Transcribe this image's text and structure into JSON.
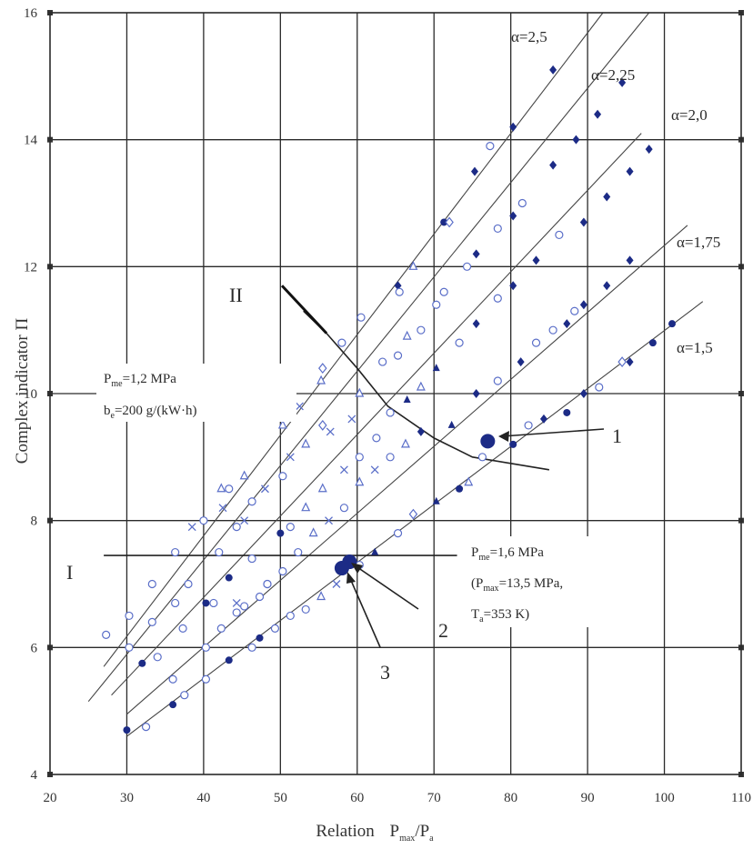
{
  "chart_data": {
    "type": "scatter",
    "title": "",
    "xlabel": "Relation",
    "xlabel_formula": {
      "p1": "P",
      "s1": "max",
      "mid": "/P",
      "s2": "a"
    },
    "ylabel": "Complex indicator П",
    "xlim": [
      20,
      110
    ],
    "ylim": [
      4,
      16
    ],
    "x_ticks": [
      "20",
      "30",
      "40",
      "50",
      "60",
      "70",
      "80",
      "90",
      "100",
      "110"
    ],
    "y_ticks": [
      "4",
      "6",
      "8",
      "10",
      "12",
      "14",
      "16"
    ],
    "grid": true,
    "series": [
      {
        "name": "α=2,5",
        "fit": [
          [
            27,
            5.7
          ],
          [
            92,
            16.0
          ]
        ],
        "points": [
          {
            "x": 27.3,
            "y": 6.2,
            "m": "circle-open"
          },
          {
            "x": 30.3,
            "y": 6.5,
            "m": "circle-open"
          },
          {
            "x": 33.3,
            "y": 7.0,
            "m": "circle-open"
          },
          {
            "x": 36.3,
            "y": 7.5,
            "m": "circle-open"
          },
          {
            "x": 38.5,
            "y": 7.9,
            "m": "x"
          },
          {
            "x": 40.0,
            "y": 8.0,
            "m": "circle-open"
          },
          {
            "x": 42.3,
            "y": 8.5,
            "m": "triangle-open"
          },
          {
            "x": 43.3,
            "y": 8.5,
            "m": "circle-open"
          },
          {
            "x": 45.3,
            "y": 8.7,
            "m": "triangle-open"
          },
          {
            "x": 50.3,
            "y": 9.5,
            "m": "triangle-open"
          },
          {
            "x": 51.3,
            "y": 9.7,
            "m": "circle-open"
          },
          {
            "x": 52.5,
            "y": 9.8,
            "m": "x"
          },
          {
            "x": 55.3,
            "y": 10.2,
            "m": "triangle-open"
          },
          {
            "x": 55.5,
            "y": 10.4,
            "m": "diamond-open"
          },
          {
            "x": 58.0,
            "y": 10.8,
            "m": "circle-open"
          },
          {
            "x": 60.5,
            "y": 11.2,
            "m": "circle-open"
          },
          {
            "x": 65.3,
            "y": 11.7,
            "m": "diamond-filled"
          },
          {
            "x": 65.5,
            "y": 11.6,
            "m": "circle-open"
          },
          {
            "x": 67.3,
            "y": 12.0,
            "m": "triangle-open"
          },
          {
            "x": 71.3,
            "y": 12.7,
            "m": "circle-filled"
          },
          {
            "x": 72.0,
            "y": 12.7,
            "m": "diamond-open"
          },
          {
            "x": 75.3,
            "y": 13.5,
            "m": "diamond-filled"
          },
          {
            "x": 77.3,
            "y": 13.9,
            "m": "circle-open"
          },
          {
            "x": 80.3,
            "y": 14.2,
            "m": "diamond-filled"
          },
          {
            "x": 85.5,
            "y": 15.1,
            "m": "diamond-filled"
          }
        ]
      },
      {
        "name": "α=2,25",
        "fit": [
          [
            25,
            5.15
          ],
          [
            98,
            16.0
          ]
        ],
        "points": [
          {
            "x": 30.3,
            "y": 6.0,
            "m": "circle-open"
          },
          {
            "x": 33.3,
            "y": 6.4,
            "m": "circle-open"
          },
          {
            "x": 36.3,
            "y": 6.7,
            "m": "circle-open"
          },
          {
            "x": 38.0,
            "y": 7.0,
            "m": "circle-open"
          },
          {
            "x": 42.0,
            "y": 7.5,
            "m": "circle-open"
          },
          {
            "x": 42.5,
            "y": 8.2,
            "m": "x"
          },
          {
            "x": 44.3,
            "y": 7.9,
            "m": "circle-open"
          },
          {
            "x": 45.3,
            "y": 8.0,
            "m": "x"
          },
          {
            "x": 46.3,
            "y": 8.3,
            "m": "circle-open"
          },
          {
            "x": 48.0,
            "y": 8.5,
            "m": "x"
          },
          {
            "x": 50.3,
            "y": 8.7,
            "m": "circle-open"
          },
          {
            "x": 51.3,
            "y": 9.0,
            "m": "x"
          },
          {
            "x": 53.3,
            "y": 9.2,
            "m": "triangle-open"
          },
          {
            "x": 55.5,
            "y": 9.5,
            "m": "diamond-open"
          },
          {
            "x": 56.5,
            "y": 9.4,
            "m": "x"
          },
          {
            "x": 59.3,
            "y": 9.6,
            "m": "x"
          },
          {
            "x": 60.3,
            "y": 10.0,
            "m": "triangle-open"
          },
          {
            "x": 63.3,
            "y": 10.5,
            "m": "circle-open"
          },
          {
            "x": 65.3,
            "y": 10.6,
            "m": "circle-open"
          },
          {
            "x": 66.5,
            "y": 10.9,
            "m": "triangle-open"
          },
          {
            "x": 68.3,
            "y": 11.0,
            "m": "circle-open"
          },
          {
            "x": 70.3,
            "y": 11.4,
            "m": "circle-open"
          },
          {
            "x": 71.3,
            "y": 11.6,
            "m": "circle-open"
          },
          {
            "x": 74.3,
            "y": 12.0,
            "m": "circle-open"
          },
          {
            "x": 75.5,
            "y": 12.2,
            "m": "diamond-filled"
          },
          {
            "x": 78.3,
            "y": 12.6,
            "m": "circle-open"
          },
          {
            "x": 80.3,
            "y": 12.8,
            "m": "diamond-filled"
          },
          {
            "x": 81.5,
            "y": 13.0,
            "m": "circle-open"
          },
          {
            "x": 85.5,
            "y": 13.6,
            "m": "diamond-filled"
          },
          {
            "x": 88.5,
            "y": 14.0,
            "m": "diamond-filled"
          },
          {
            "x": 91.3,
            "y": 14.4,
            "m": "diamond-filled"
          },
          {
            "x": 94.5,
            "y": 14.9,
            "m": "diamond-filled"
          }
        ]
      },
      {
        "name": "α=2,0",
        "fit": [
          [
            28,
            5.25
          ],
          [
            97,
            14.1
          ]
        ],
        "points": [
          {
            "x": 32.0,
            "y": 5.75,
            "m": "circle-filled"
          },
          {
            "x": 34.0,
            "y": 5.85,
            "m": "circle-open"
          },
          {
            "x": 37.3,
            "y": 6.3,
            "m": "circle-open"
          },
          {
            "x": 40.3,
            "y": 6.7,
            "m": "circle-filled"
          },
          {
            "x": 41.3,
            "y": 6.7,
            "m": "circle-open"
          },
          {
            "x": 43.3,
            "y": 7.1,
            "m": "circle-filled"
          },
          {
            "x": 44.3,
            "y": 6.7,
            "m": "x"
          },
          {
            "x": 45.3,
            "y": 6.65,
            "m": "circle-open"
          },
          {
            "x": 46.3,
            "y": 7.4,
            "m": "circle-open"
          },
          {
            "x": 48.3,
            "y": 7.0,
            "m": "circle-open"
          },
          {
            "x": 50.0,
            "y": 7.8,
            "m": "circle-filled"
          },
          {
            "x": 51.3,
            "y": 7.9,
            "m": "circle-open"
          },
          {
            "x": 53.3,
            "y": 8.2,
            "m": "triangle-open"
          },
          {
            "x": 55.5,
            "y": 8.5,
            "m": "triangle-open"
          },
          {
            "x": 58.3,
            "y": 8.8,
            "m": "x"
          },
          {
            "x": 60.3,
            "y": 9.0,
            "m": "circle-open"
          },
          {
            "x": 62.5,
            "y": 9.3,
            "m": "circle-open"
          },
          {
            "x": 64.3,
            "y": 9.7,
            "m": "circle-open"
          },
          {
            "x": 66.5,
            "y": 9.9,
            "m": "triangle-filled"
          },
          {
            "x": 68.3,
            "y": 10.1,
            "m": "triangle-open"
          },
          {
            "x": 70.3,
            "y": 10.4,
            "m": "triangle-filled"
          },
          {
            "x": 73.3,
            "y": 10.8,
            "m": "circle-open"
          },
          {
            "x": 75.5,
            "y": 11.1,
            "m": "diamond-filled"
          },
          {
            "x": 78.3,
            "y": 11.5,
            "m": "circle-open"
          },
          {
            "x": 80.3,
            "y": 11.7,
            "m": "diamond-filled"
          },
          {
            "x": 83.3,
            "y": 12.1,
            "m": "diamond-filled"
          },
          {
            "x": 86.3,
            "y": 12.5,
            "m": "circle-open"
          },
          {
            "x": 89.5,
            "y": 12.7,
            "m": "diamond-filled"
          },
          {
            "x": 92.5,
            "y": 13.1,
            "m": "diamond-filled"
          },
          {
            "x": 95.5,
            "y": 13.5,
            "m": "diamond-filled"
          },
          {
            "x": 98.0,
            "y": 13.85,
            "m": "diamond-filled"
          }
        ]
      },
      {
        "name": "α=1,75",
        "fit": [
          [
            30,
            4.95
          ],
          [
            103,
            12.65
          ]
        ],
        "points": [
          {
            "x": 36.0,
            "y": 5.5,
            "m": "circle-open"
          },
          {
            "x": 40.3,
            "y": 6.0,
            "m": "circle-open"
          },
          {
            "x": 42.3,
            "y": 6.3,
            "m": "circle-open"
          },
          {
            "x": 44.3,
            "y": 6.55,
            "m": "circle-open"
          },
          {
            "x": 47.3,
            "y": 6.8,
            "m": "circle-open"
          },
          {
            "x": 48.3,
            "y": 7.0,
            "m": "circle-open"
          },
          {
            "x": 50.3,
            "y": 7.2,
            "m": "circle-open"
          },
          {
            "x": 52.3,
            "y": 7.5,
            "m": "circle-open"
          },
          {
            "x": 54.3,
            "y": 7.8,
            "m": "triangle-open"
          },
          {
            "x": 56.3,
            "y": 8.0,
            "m": "x"
          },
          {
            "x": 58.3,
            "y": 8.2,
            "m": "circle-open"
          },
          {
            "x": 60.3,
            "y": 8.6,
            "m": "triangle-open"
          },
          {
            "x": 62.3,
            "y": 8.8,
            "m": "x"
          },
          {
            "x": 64.3,
            "y": 9.0,
            "m": "circle-open"
          },
          {
            "x": 66.3,
            "y": 9.2,
            "m": "triangle-open"
          },
          {
            "x": 68.3,
            "y": 9.4,
            "m": "diamond-filled"
          },
          {
            "x": 72.3,
            "y": 9.5,
            "m": "triangle-filled"
          },
          {
            "x": 75.5,
            "y": 10.0,
            "m": "diamond-filled"
          },
          {
            "x": 78.3,
            "y": 10.2,
            "m": "circle-open"
          },
          {
            "x": 81.3,
            "y": 10.5,
            "m": "diamond-filled"
          },
          {
            "x": 83.3,
            "y": 10.8,
            "m": "circle-open"
          },
          {
            "x": 85.5,
            "y": 11.0,
            "m": "circle-open"
          },
          {
            "x": 87.3,
            "y": 11.1,
            "m": "diamond-filled"
          },
          {
            "x": 88.3,
            "y": 11.3,
            "m": "circle-open"
          },
          {
            "x": 89.5,
            "y": 11.4,
            "m": "diamond-filled"
          },
          {
            "x": 92.5,
            "y": 11.7,
            "m": "diamond-filled"
          },
          {
            "x": 95.5,
            "y": 12.1,
            "m": "diamond-filled"
          }
        ]
      },
      {
        "name": "α=1,5",
        "fit": [
          [
            30,
            4.6
          ],
          [
            105,
            11.45
          ]
        ],
        "points": [
          {
            "x": 30.0,
            "y": 4.7,
            "m": "circle-filled"
          },
          {
            "x": 32.5,
            "y": 4.75,
            "m": "circle-open"
          },
          {
            "x": 36.0,
            "y": 5.1,
            "m": "circle-filled"
          },
          {
            "x": 37.5,
            "y": 5.25,
            "m": "circle-open"
          },
          {
            "x": 40.3,
            "y": 5.5,
            "m": "circle-open"
          },
          {
            "x": 43.3,
            "y": 5.8,
            "m": "circle-filled"
          },
          {
            "x": 46.3,
            "y": 6.0,
            "m": "circle-open"
          },
          {
            "x": 47.3,
            "y": 6.15,
            "m": "circle-filled"
          },
          {
            "x": 49.3,
            "y": 6.3,
            "m": "circle-open"
          },
          {
            "x": 51.3,
            "y": 6.5,
            "m": "circle-open"
          },
          {
            "x": 53.3,
            "y": 6.6,
            "m": "circle-open"
          },
          {
            "x": 55.3,
            "y": 6.8,
            "m": "triangle-open"
          },
          {
            "x": 57.3,
            "y": 7.0,
            "m": "x"
          },
          {
            "x": 60.3,
            "y": 7.3,
            "m": "circle-open"
          },
          {
            "x": 62.3,
            "y": 7.5,
            "m": "triangle-filled"
          },
          {
            "x": 65.3,
            "y": 7.8,
            "m": "circle-open"
          },
          {
            "x": 67.3,
            "y": 8.1,
            "m": "diamond-open"
          },
          {
            "x": 70.3,
            "y": 8.3,
            "m": "triangle-filled"
          },
          {
            "x": 73.3,
            "y": 8.5,
            "m": "circle-filled"
          },
          {
            "x": 74.5,
            "y": 8.6,
            "m": "triangle-open"
          },
          {
            "x": 76.3,
            "y": 9.0,
            "m": "circle-open"
          },
          {
            "x": 80.3,
            "y": 9.2,
            "m": "circle-filled"
          },
          {
            "x": 82.3,
            "y": 9.5,
            "m": "circle-open"
          },
          {
            "x": 84.3,
            "y": 9.6,
            "m": "diamond-filled"
          },
          {
            "x": 87.3,
            "y": 9.7,
            "m": "circle-filled"
          },
          {
            "x": 89.5,
            "y": 10.0,
            "m": "diamond-filled"
          },
          {
            "x": 91.5,
            "y": 10.1,
            "m": "circle-open"
          },
          {
            "x": 94.5,
            "y": 10.5,
            "m": "diamond-open"
          },
          {
            "x": 95.5,
            "y": 10.5,
            "m": "diamond-filled"
          },
          {
            "x": 98.5,
            "y": 10.8,
            "m": "circle-filled"
          },
          {
            "x": 101.0,
            "y": 11.1,
            "m": "circle-filled"
          }
        ]
      }
    ],
    "boundary_lines": [
      {
        "label": "II",
        "points": [
          [
            53,
            11.3
          ],
          [
            56,
            10.95
          ],
          [
            60,
            10.4
          ],
          [
            64,
            9.8
          ],
          [
            70,
            9.3
          ],
          [
            75,
            9.0
          ],
          [
            80,
            8.9
          ],
          [
            85,
            8.8
          ]
        ]
      },
      {
        "label": "I",
        "points": [
          [
            27,
            7.45
          ],
          [
            73,
            7.45
          ]
        ]
      }
    ],
    "highlight_points": [
      {
        "label": "1",
        "x": 77,
        "y": 9.25
      },
      {
        "label": "2",
        "x": 59,
        "y": 7.35
      },
      {
        "label": "3",
        "x": 58,
        "y": 7.25
      }
    ],
    "annotations": {
      "roman_1": "I",
      "roman_2": "II",
      "label_1": "1",
      "label_2": "2",
      "label_3": "3",
      "note_upper_line1": {
        "p": "P",
        "sub": "me",
        "rest": "=1,2 MPa"
      },
      "note_upper_line2": {
        "p": "b",
        "sub": "e",
        "rest": "=200 g/(kW·h)"
      },
      "note_lower_line1": {
        "p": "P",
        "sub": "me",
        "rest": "=1,6 MPa"
      },
      "note_lower_line2": {
        "pre": "(P",
        "sub": "max",
        "rest": "=13,5 MPa,"
      },
      "note_lower_line3": {
        "p": "T",
        "sub": "a",
        "rest": "=353 K)"
      }
    },
    "colors": {
      "filled_marker": "#1c2b86",
      "open_marker": "#5a6ec8",
      "fit_line": "#444444",
      "boundary_line": "#222222"
    }
  }
}
